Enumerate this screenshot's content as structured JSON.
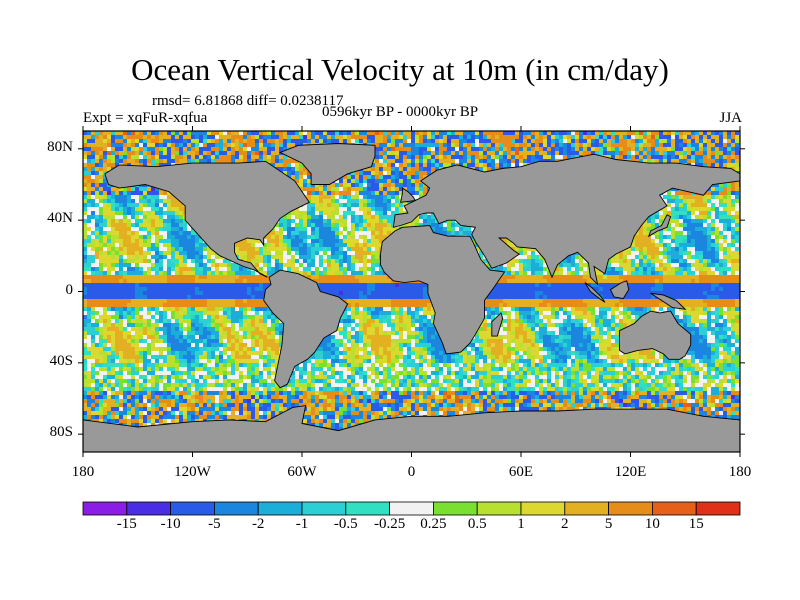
{
  "title": "Ocean Vertical Velocity at 10m (in cm/day)",
  "stats": "rmsd= 6.81868 diff= 0.0238117",
  "experiment": "Expt = xqFuR-xqfua",
  "period": "0596kyr BP - 0000kyr BP",
  "season": "JJA",
  "axes": {
    "lat_labels": [
      "80N",
      "40N",
      "0",
      "40S",
      "80S"
    ],
    "lat_values": [
      80,
      40,
      0,
      -40,
      -80
    ],
    "lon_labels": [
      "180",
      "120W",
      "60W",
      "0",
      "60E",
      "120E",
      "180"
    ],
    "lon_values": [
      -180,
      -120,
      -60,
      0,
      60,
      120,
      180
    ],
    "lon_range": [
      -180,
      180
    ],
    "lat_range": [
      -90,
      90
    ]
  },
  "legend": {
    "labels": [
      "-15",
      "-10",
      "-5",
      "-2",
      "-1",
      "-0.5",
      "-0.25",
      "0.25",
      "0.5",
      "1",
      "2",
      "5",
      "10",
      "15"
    ],
    "colors": [
      "#8a1ee6",
      "#4a2ee6",
      "#2a5ae8",
      "#1a86e0",
      "#1aaed8",
      "#2ad0d4",
      "#30e0c0",
      "#f2f2f2",
      "#7ae030",
      "#b8e030",
      "#dcd830",
      "#e2b020",
      "#e68c18",
      "#e6601a",
      "#e03018"
    ]
  },
  "colors": {
    "land": "#999999",
    "coast": "#000000",
    "background": "#ffffff"
  }
}
